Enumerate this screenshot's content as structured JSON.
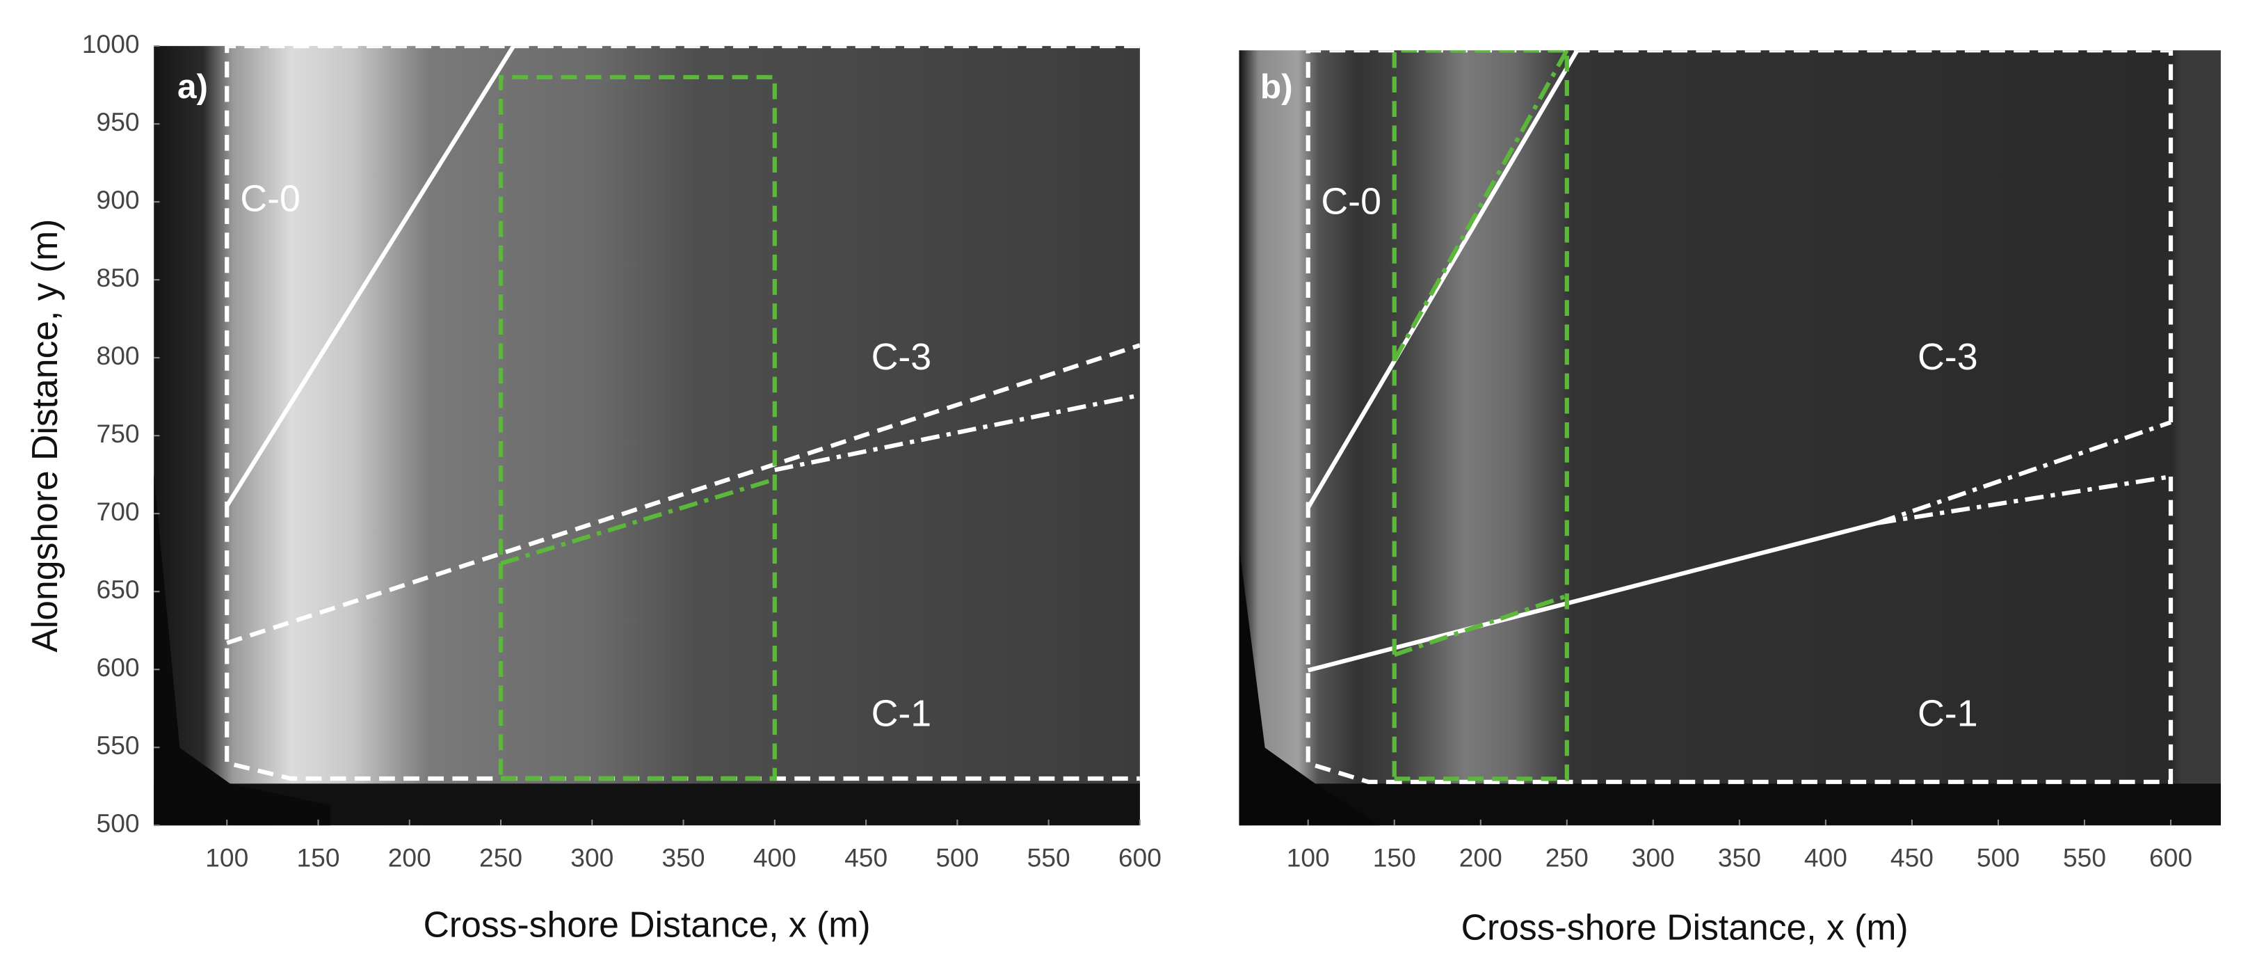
{
  "chart_data": [
    {
      "type": "image",
      "panel_label": "a)",
      "xlabel": "Cross-shore Distance, x (m)",
      "ylabel": "Alongshore Distance, y (m)",
      "xlim": [
        60,
        600
      ],
      "ylim": [
        500,
        1000
      ],
      "xticks": [
        100,
        150,
        200,
        250,
        300,
        350,
        400,
        450,
        500,
        550,
        600
      ],
      "yticks": [
        500,
        550,
        600,
        650,
        700,
        750,
        800,
        850,
        900,
        950,
        1000
      ],
      "annotations": [
        "C-0",
        "C-3",
        "C-1"
      ],
      "series": [
        {
          "color": "#ffffff",
          "dash": "solid",
          "x": [
            100,
            257
          ],
          "values": [
            705,
            1000
          ]
        },
        {
          "color": "#ffffff",
          "dash": "dashed",
          "x": [
            600,
            100,
            100,
            135,
            600
          ],
          "values": [
            1000,
            1000,
            540,
            530,
            530
          ]
        },
        {
          "color": "#ffffff",
          "dash": "dashed",
          "x": [
            100,
            600
          ],
          "values": [
            617,
            808
          ]
        },
        {
          "color": "#ffffff",
          "dash": "dashdot",
          "x": [
            400,
            600
          ],
          "values": [
            728,
            776
          ]
        },
        {
          "color": "#5cb83a",
          "dash": "dashed",
          "x": [
            250,
            400,
            400,
            250,
            250
          ],
          "values": [
            530,
            530,
            980,
            980,
            530
          ]
        },
        {
          "color": "#5cb83a",
          "dash": "dashdot",
          "x": [
            250,
            400
          ],
          "values": [
            668,
            722
          ]
        }
      ]
    },
    {
      "type": "image",
      "panel_label": "b)",
      "xlabel": "Cross-shore Distance, x (m)",
      "xlim": [
        60,
        629
      ],
      "ylim": [
        500,
        1000
      ],
      "xticks": [
        100,
        150,
        200,
        250,
        300,
        350,
        400,
        450,
        500,
        550,
        600
      ],
      "annotations": [
        "C-0",
        "C-3",
        "C-1"
      ],
      "series": [
        {
          "color": "#ffffff",
          "dash": "solid",
          "x": [
            100,
            256
          ],
          "values": [
            705,
            1000
          ]
        },
        {
          "color": "#ffffff",
          "dash": "dashed",
          "x": [
            600,
            600,
            100,
            100,
            135,
            600,
            600
          ],
          "values": [
            760,
            1000,
            1000,
            540,
            528,
            528,
            725
          ]
        },
        {
          "color": "#ffffff",
          "dash": "solid",
          "x": [
            100,
            430
          ],
          "values": [
            600,
            695
          ]
        },
        {
          "color": "#ffffff",
          "dash": "dashdot",
          "x": [
            430,
            600
          ],
          "values": [
            695,
            760
          ]
        },
        {
          "color": "#ffffff",
          "dash": "dashdot",
          "x": [
            430,
            600
          ],
          "values": [
            695,
            725
          ]
        },
        {
          "color": "#5cb83a",
          "dash": "dashed",
          "x": [
            150,
            250,
            250,
            150,
            150
          ],
          "values": [
            530,
            530,
            1000,
            1000,
            530
          ]
        },
        {
          "color": "#5cb83a",
          "dash": "dashdot",
          "x": [
            150,
            250
          ],
          "values": [
            610,
            648
          ]
        },
        {
          "color": "#5cb83a",
          "dash": "dashdot",
          "x": [
            150,
            250
          ],
          "values": [
            800,
            1000
          ]
        }
      ]
    }
  ]
}
